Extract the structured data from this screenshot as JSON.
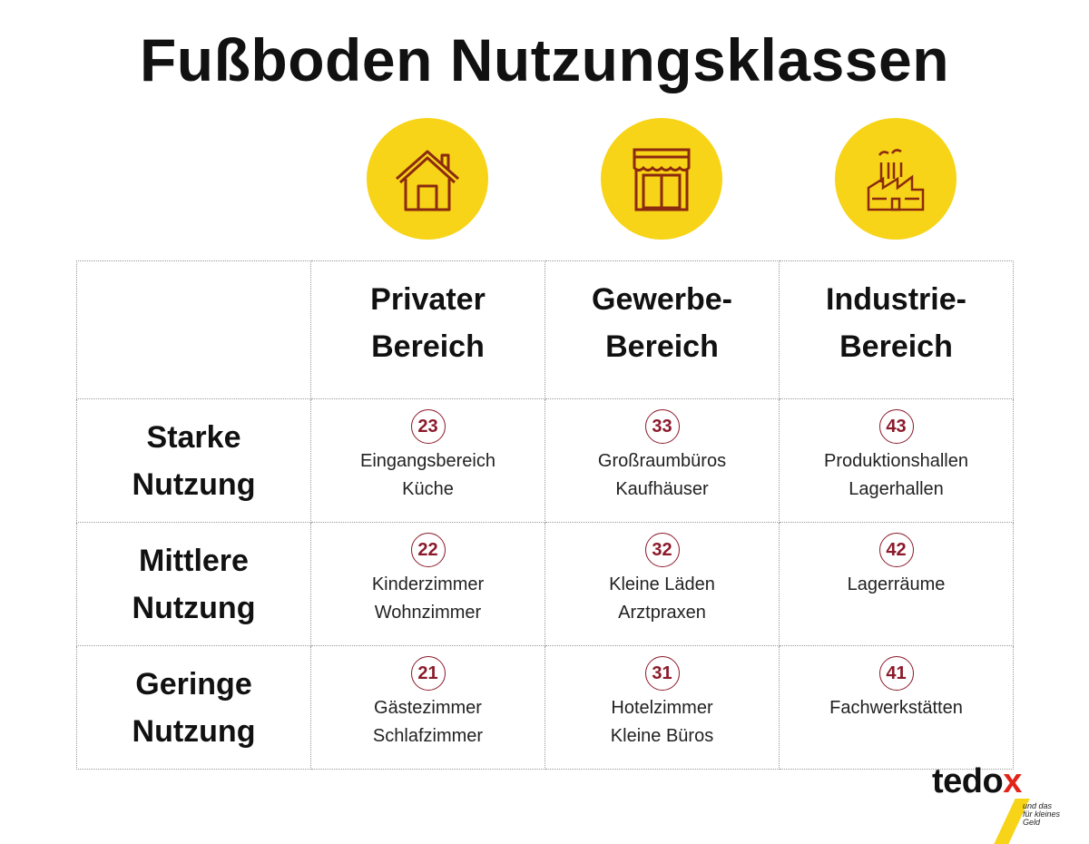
{
  "title": "Fußboden Nutzungsklassen",
  "icons": [
    "house-icon",
    "shop-icon",
    "factory-icon"
  ],
  "colors": {
    "accent_yellow": "#f7d417",
    "icon_stroke": "#8b2a0f",
    "badge": "#8b1a2b",
    "logo_x": "#e2231a"
  },
  "columns": [
    {
      "line1": "Privater",
      "line2": "Bereich"
    },
    {
      "line1": "Gewerbe-",
      "line2": "Bereich"
    },
    {
      "line1": "Industrie-",
      "line2": "Bereich"
    }
  ],
  "rows": [
    {
      "line1": "Starke",
      "line2": "Nutzung",
      "cells": [
        {
          "class": "23",
          "items": [
            "Eingangsbereich",
            "Küche"
          ]
        },
        {
          "class": "33",
          "items": [
            "Großraumbüros",
            "Kaufhäuser"
          ]
        },
        {
          "class": "43",
          "items": [
            "Produktionshallen",
            "Lagerhallen"
          ]
        }
      ]
    },
    {
      "line1": "Mittlere",
      "line2": "Nutzung",
      "cells": [
        {
          "class": "22",
          "items": [
            "Kinderzimmer",
            "Wohnzimmer"
          ]
        },
        {
          "class": "32",
          "items": [
            "Kleine Läden",
            "Arztpraxen"
          ]
        },
        {
          "class": "42",
          "items": [
            "Lagerräume"
          ]
        }
      ]
    },
    {
      "line1": "Geringe",
      "line2": "Nutzung",
      "cells": [
        {
          "class": "21",
          "items": [
            "Gästezimmer",
            "Schlafzimmer"
          ]
        },
        {
          "class": "31",
          "items": [
            "Hotelzimmer",
            "Kleine Büros"
          ]
        },
        {
          "class": "41",
          "items": [
            "Fachwerkstätten"
          ]
        }
      ]
    }
  ],
  "logo": {
    "brand": "tedo",
    "brand_x": "x",
    "slogan_line1": "und das",
    "slogan_line2": "für kleines Geld"
  }
}
